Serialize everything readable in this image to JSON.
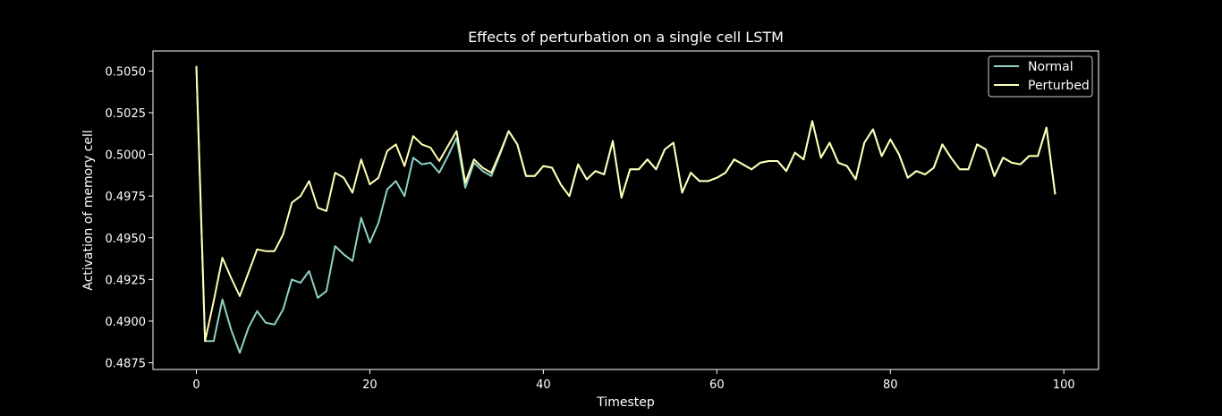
{
  "chart_data": {
    "type": "line",
    "title": "Effects of perturbation on a single cell LSTM",
    "xlabel": "Timestep",
    "ylabel": "Activation of memory cell",
    "xlim": [
      -5,
      104
    ],
    "ylim": [
      0.4871,
      0.5062
    ],
    "x_ticks": [
      "0",
      "20",
      "40",
      "60",
      "80",
      "100"
    ],
    "y_ticks": [
      "0.4875",
      "0.4900",
      "0.4925",
      "0.4950",
      "0.4975",
      "0.5000",
      "0.5025",
      "0.5050"
    ],
    "legend_position": "top-right",
    "grid": false,
    "background": "#000000",
    "series": [
      {
        "name": "Normal",
        "color": "#8dd3c7",
        "values": [
          0.5053,
          0.4888,
          0.4888,
          0.4913,
          0.4895,
          0.4881,
          0.4896,
          0.4906,
          0.4899,
          0.4898,
          0.4907,
          0.4925,
          0.4923,
          0.493,
          0.4914,
          0.4918,
          0.4945,
          0.494,
          0.4936,
          0.4962,
          0.4947,
          0.4959,
          0.4979,
          0.4984,
          0.4975,
          0.4998,
          0.4994,
          0.4995,
          0.4989,
          0.4999,
          0.501,
          0.498,
          0.4995,
          0.499,
          0.4987,
          0.5,
          0.5014,
          0.5006,
          0.4987,
          0.4987,
          0.4993,
          0.4992,
          0.4982,
          0.4975,
          0.4994,
          0.4985,
          0.499,
          0.4988,
          0.5008,
          0.4974,
          0.4991,
          0.4991,
          0.4997,
          0.4991,
          0.5003,
          0.5007,
          0.4977,
          0.4989,
          0.4984,
          0.4984,
          0.4986,
          0.4989,
          0.4997,
          0.4994,
          0.4991,
          0.4995,
          0.4996,
          0.4996,
          0.499,
          0.5001,
          0.4997,
          0.502,
          0.4998,
          0.5007,
          0.4995,
          0.4993,
          0.4985,
          0.5007,
          0.5015,
          0.4999,
          0.5009,
          0.5,
          0.4986,
          0.499,
          0.4988,
          0.4992,
          0.5006,
          0.4998,
          0.4991,
          0.4991,
          0.5006,
          0.5003,
          0.4987,
          0.4998,
          0.4995,
          0.4994,
          0.4999,
          0.4999,
          0.5016,
          0.4976
        ]
      },
      {
        "name": "Perturbed",
        "color": "#ffffb3",
        "values": [
          0.5053,
          0.4888,
          0.4912,
          0.4938,
          0.4926,
          0.4915,
          0.4929,
          0.4943,
          0.4942,
          0.4942,
          0.4952,
          0.4971,
          0.4975,
          0.4984,
          0.4968,
          0.4966,
          0.4989,
          0.4986,
          0.4977,
          0.4997,
          0.4982,
          0.4986,
          0.5002,
          0.5006,
          0.4993,
          0.5011,
          0.5006,
          0.5004,
          0.4996,
          0.5005,
          0.5014,
          0.4983,
          0.4997,
          0.4992,
          0.4989,
          0.5001,
          0.5014,
          0.5006,
          0.4987,
          0.4987,
          0.4993,
          0.4992,
          0.4982,
          0.4975,
          0.4994,
          0.4985,
          0.499,
          0.4988,
          0.5008,
          0.4974,
          0.4991,
          0.4991,
          0.4997,
          0.4991,
          0.5003,
          0.5007,
          0.4977,
          0.4989,
          0.4984,
          0.4984,
          0.4986,
          0.4989,
          0.4997,
          0.4994,
          0.4991,
          0.4995,
          0.4996,
          0.4996,
          0.499,
          0.5001,
          0.4997,
          0.502,
          0.4998,
          0.5007,
          0.4995,
          0.4993,
          0.4985,
          0.5007,
          0.5015,
          0.4999,
          0.5009,
          0.5,
          0.4986,
          0.499,
          0.4988,
          0.4992,
          0.5006,
          0.4998,
          0.4991,
          0.4991,
          0.5006,
          0.5003,
          0.4987,
          0.4998,
          0.4995,
          0.4994,
          0.4999,
          0.4999,
          0.5016,
          0.4976
        ]
      }
    ]
  }
}
